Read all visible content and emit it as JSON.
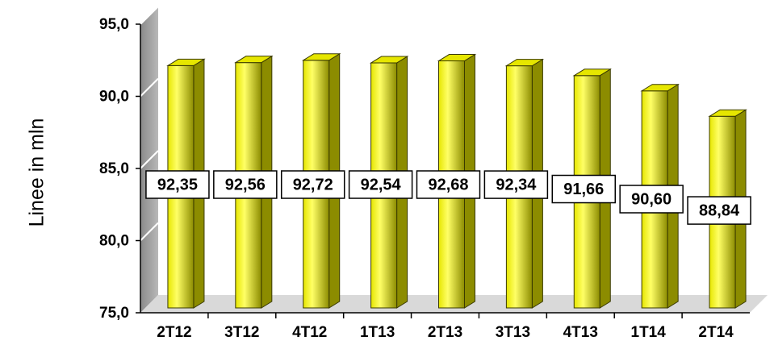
{
  "chart_data": {
    "type": "bar",
    "title": "",
    "xlabel": "",
    "ylabel": "Linee in mln",
    "categories": [
      "2T12",
      "3T12",
      "4T12",
      "1T13",
      "2T13",
      "3T13",
      "4T13",
      "1T14",
      "2T14"
    ],
    "values": [
      92.35,
      92.56,
      92.72,
      92.54,
      92.68,
      92.34,
      91.66,
      90.6,
      88.84
    ],
    "value_labels": [
      "92,35",
      "92,56",
      "92,72",
      "92,54",
      "92,68",
      "92,34",
      "91,66",
      "90,60",
      "88,84"
    ],
    "ylim": [
      75,
      95
    ],
    "yticks": [
      75,
      80,
      85,
      90,
      95
    ],
    "ytick_labels": [
      "75,0",
      "80,0",
      "85,0",
      "90,0",
      "95,0"
    ],
    "grid": true,
    "legend": "none",
    "style": "3d-cylinder",
    "colors": {
      "bar_light": "#ffff66",
      "bar_main": "#e6e600",
      "bar_dark": "#8c8c00",
      "bar_outline": "#3a3a00",
      "wall": "#a6a6a6",
      "floor": "#d9d9d9",
      "gridline": "#ffffff",
      "axis": "#000000"
    }
  }
}
